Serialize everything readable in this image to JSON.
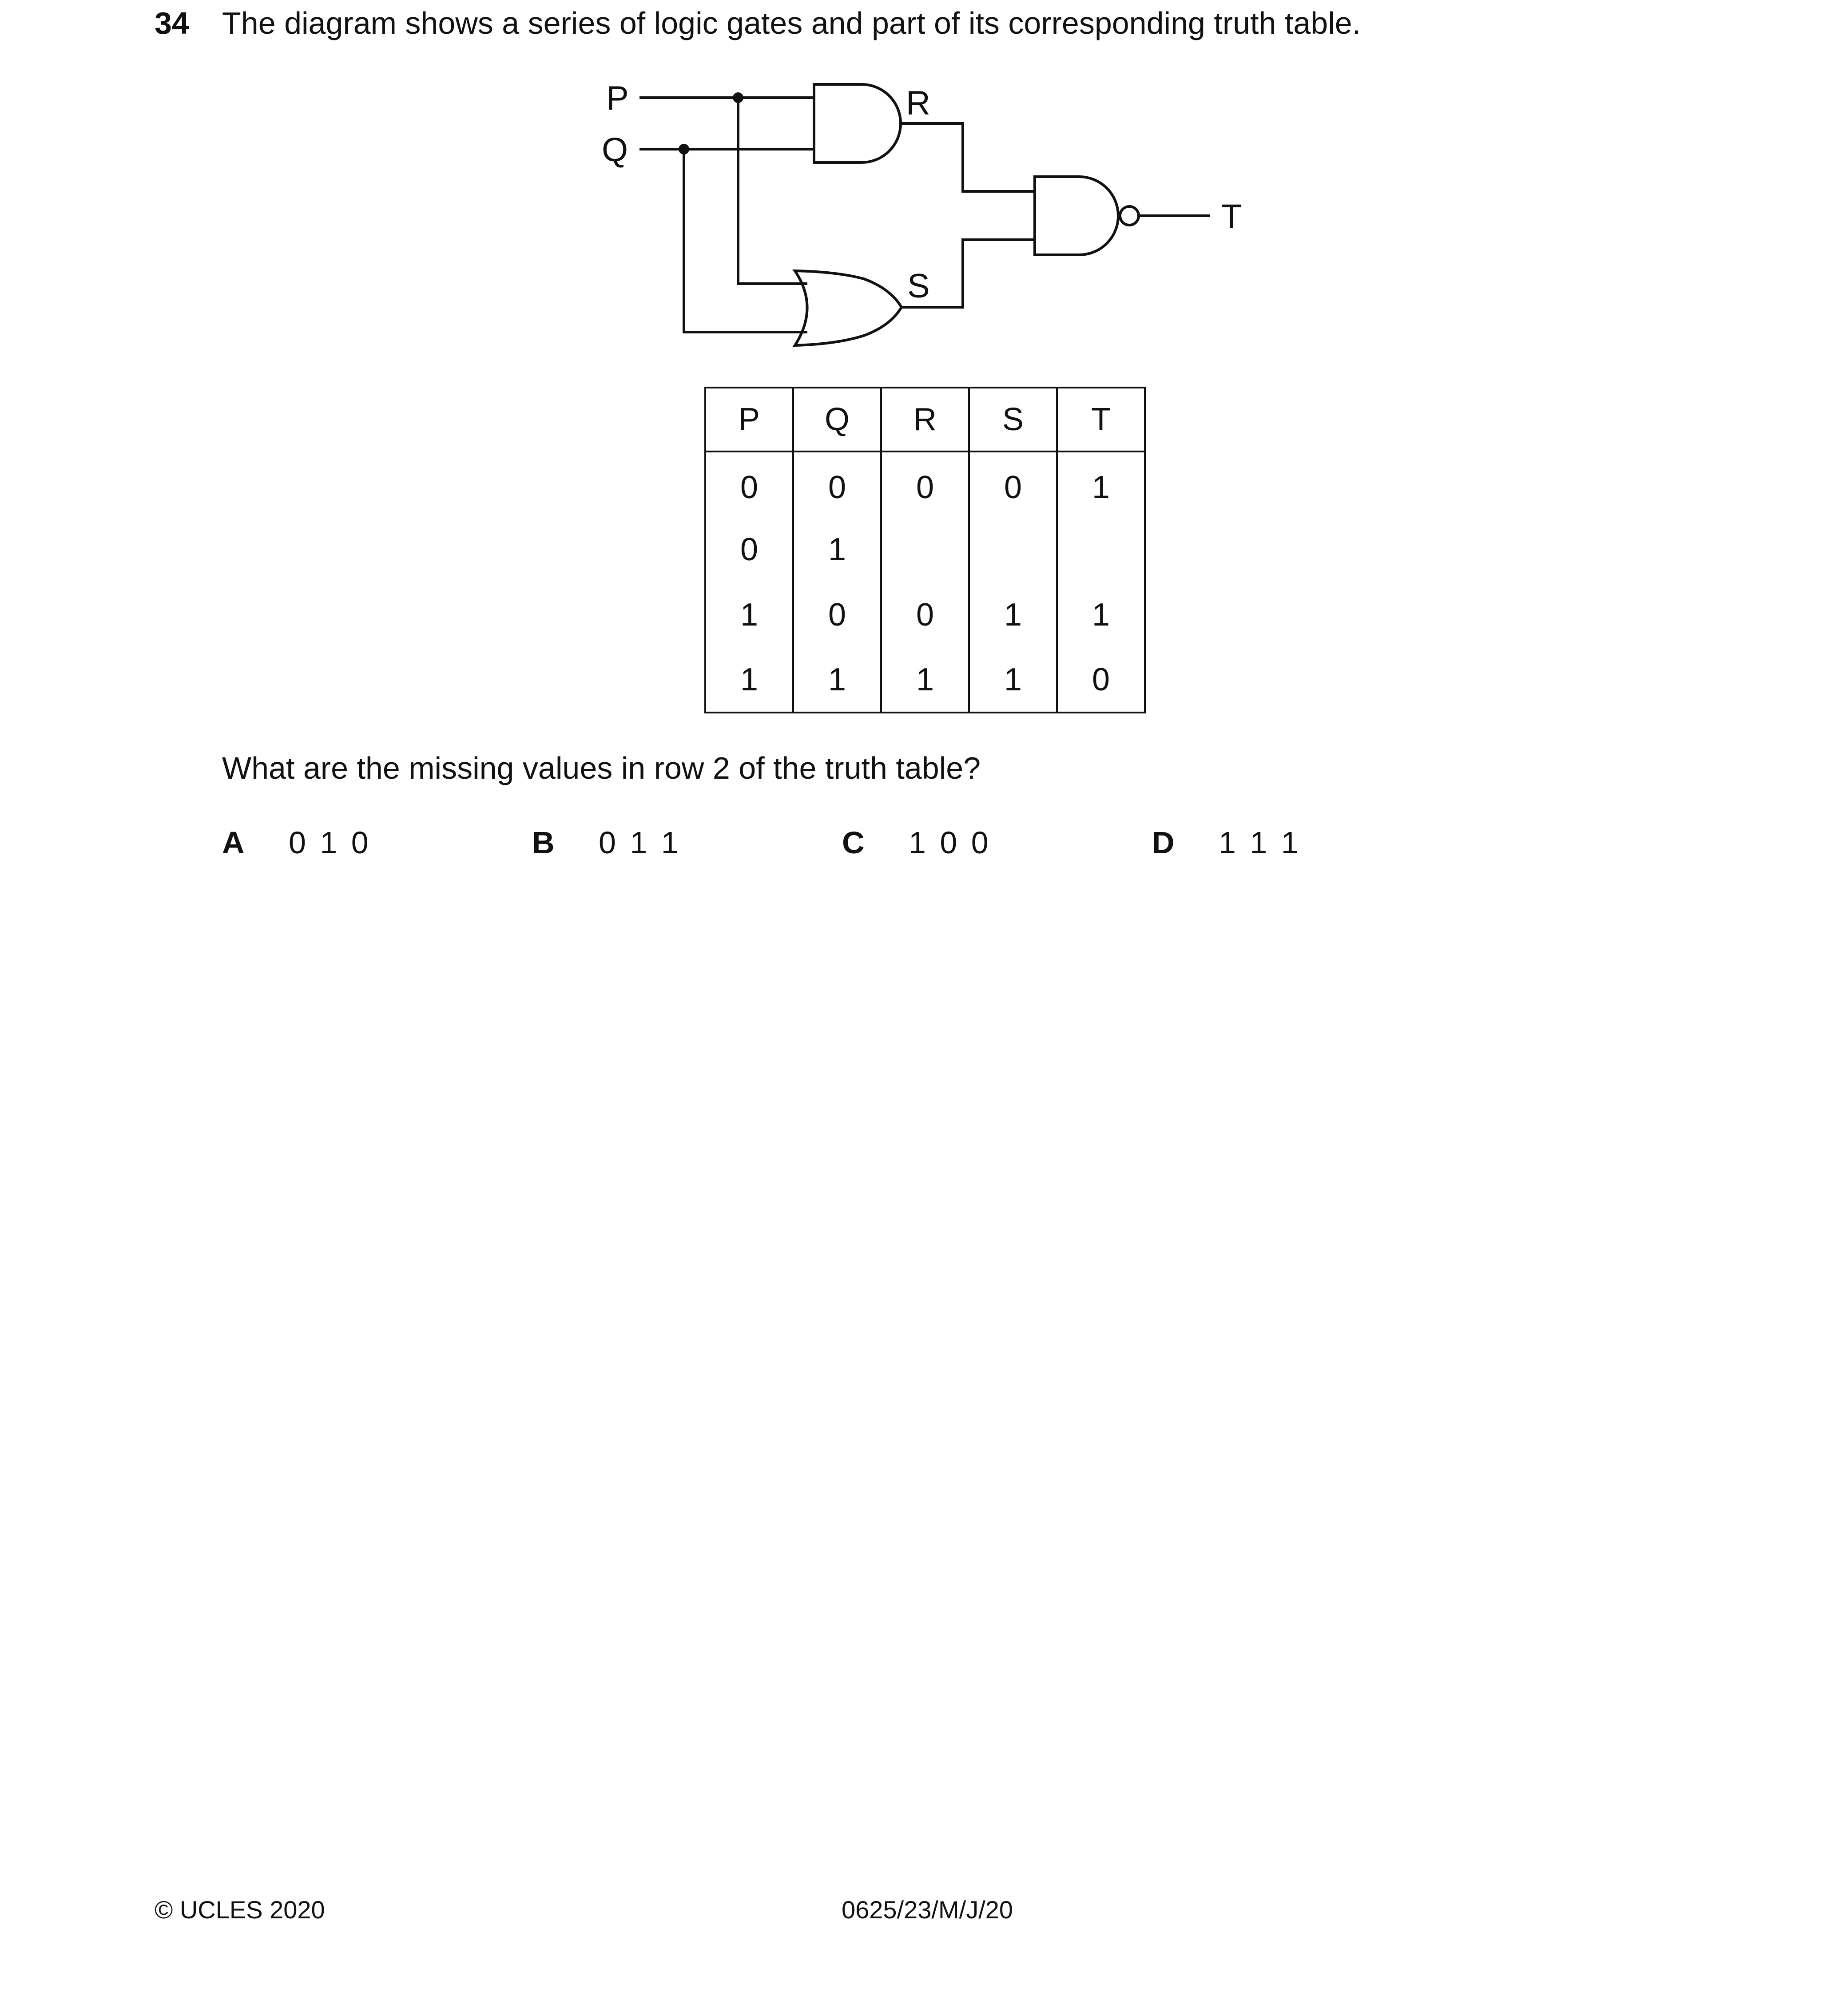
{
  "question": {
    "number": "34",
    "text": "The diagram shows a series of logic gates and part of its corresponding truth table."
  },
  "diagram": {
    "labels": {
      "p": "P",
      "q": "Q",
      "r": "R",
      "s": "S",
      "t": "T"
    }
  },
  "truth_table": {
    "headers": [
      "P",
      "Q",
      "R",
      "S",
      "T"
    ],
    "rows": [
      [
        "0",
        "0",
        "0",
        "0",
        "1"
      ],
      [
        "0",
        "1",
        "",
        "",
        ""
      ],
      [
        "1",
        "0",
        "0",
        "1",
        "1"
      ],
      [
        "1",
        "1",
        "1",
        "1",
        "0"
      ]
    ]
  },
  "prompt": "What are the missing values in row 2 of the truth table?",
  "options": [
    {
      "letter": "A",
      "answer": "0 1 0"
    },
    {
      "letter": "B",
      "answer": "0 1 1"
    },
    {
      "letter": "C",
      "answer": "1 0 0"
    },
    {
      "letter": "D",
      "answer": "1 1 1"
    }
  ],
  "footer": {
    "copyright": "© UCLES 2020",
    "code": "0625/23/M/J/20"
  }
}
